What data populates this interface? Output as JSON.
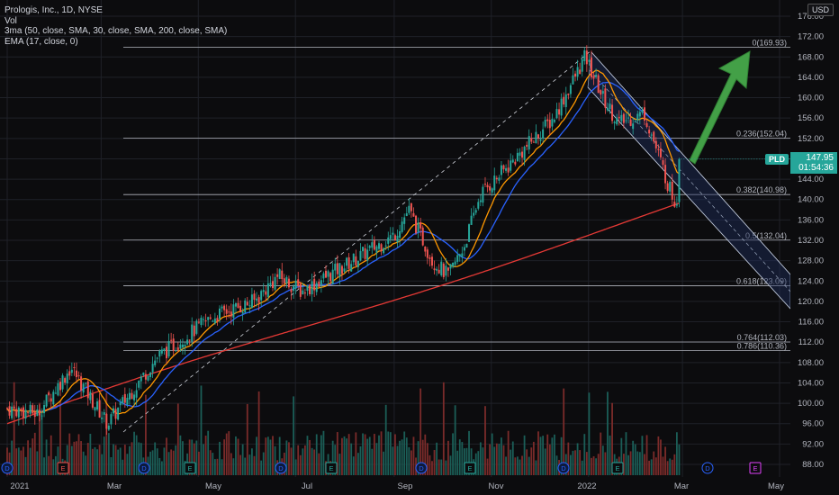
{
  "legend": {
    "symbol": "Prologis, Inc., 1D, NYSE",
    "vol": "Vol",
    "ma3": "3ma (50, close, SMA, 30, close, SMA, 200, close, SMA)",
    "ema": "EMA (17, close, 0)"
  },
  "currency": "USD",
  "last_price": {
    "ticker": "PLD",
    "price": "147.95",
    "countdown": "01:54:36"
  },
  "colors": {
    "background": "#0c0c0e",
    "up": "#26a69a",
    "down": "#ef5350",
    "ma_fast": "#2962ff",
    "ma_mid": "#ff9800",
    "ma_slow": "#e53935",
    "channel_fill": "#1e2f5e",
    "arrow": "#43a047"
  },
  "chart_data": {
    "type": "candlestick",
    "y_axis": {
      "ylim": [
        86,
        177
      ],
      "ticks": [
        "176.00",
        "172.00",
        "168.00",
        "164.00",
        "160.00",
        "156.00",
        "152.00",
        "148.00",
        "144.00",
        "140.00",
        "136.00",
        "132.00",
        "128.00",
        "124.00",
        "120.00",
        "116.00",
        "112.00",
        "108.00",
        "104.00",
        "100.00",
        "96.00",
        "92.00",
        "88.00"
      ]
    },
    "x_axis": {
      "labels": [
        "2021",
        "Mar",
        "May",
        "Jul",
        "Sep",
        "Nov",
        "2022",
        "Mar",
        "May"
      ]
    },
    "fib_levels": [
      {
        "ratio": "0",
        "price": 169.93,
        "label": "0(169.93)"
      },
      {
        "ratio": "0.236",
        "price": 152.04,
        "label": "0.236(152.04)"
      },
      {
        "ratio": "0.382",
        "price": 140.98,
        "label": "0.382(140.98)"
      },
      {
        "ratio": "0.5",
        "price": 132.04,
        "label": "0.5(132.04)"
      },
      {
        "ratio": "0.618",
        "price": 123.09,
        "label": "0.618(123.09)"
      },
      {
        "ratio": "0.764",
        "price": 112.03,
        "label": "0.764(112.03)"
      },
      {
        "ratio": "0.786",
        "price": 110.36,
        "label": "0.786(110.36)"
      }
    ],
    "price_path": [
      [
        "2021-01-01",
        99
      ],
      [
        "2021-01-20",
        98
      ],
      [
        "2021-02-10",
        107
      ],
      [
        "2021-03-05",
        96
      ],
      [
        "2021-04-05",
        109
      ],
      [
        "2021-05-10",
        117
      ],
      [
        "2021-06-05",
        120
      ],
      [
        "2021-06-20",
        125
      ],
      [
        "2021-07-05",
        122
      ],
      [
        "2021-08-01",
        127
      ],
      [
        "2021-09-01",
        133
      ],
      [
        "2021-09-10",
        138
      ],
      [
        "2021-09-25",
        128
      ],
      [
        "2021-10-05",
        125
      ],
      [
        "2021-10-15",
        131
      ],
      [
        "2021-10-25",
        141
      ],
      [
        "2021-11-10",
        146
      ],
      [
        "2021-12-10",
        156
      ],
      [
        "2021-12-30",
        168
      ],
      [
        "2022-01-10",
        160
      ],
      [
        "2022-01-20",
        155
      ],
      [
        "2022-02-05",
        157
      ],
      [
        "2022-02-20",
        143
      ],
      [
        "2022-02-25",
        139
      ],
      [
        "2022-02-28",
        147.95
      ]
    ],
    "volume_events": [
      "D",
      "E",
      "D",
      "E",
      "D",
      "E",
      "D",
      "E",
      "D",
      "E",
      "D",
      "E"
    ]
  }
}
